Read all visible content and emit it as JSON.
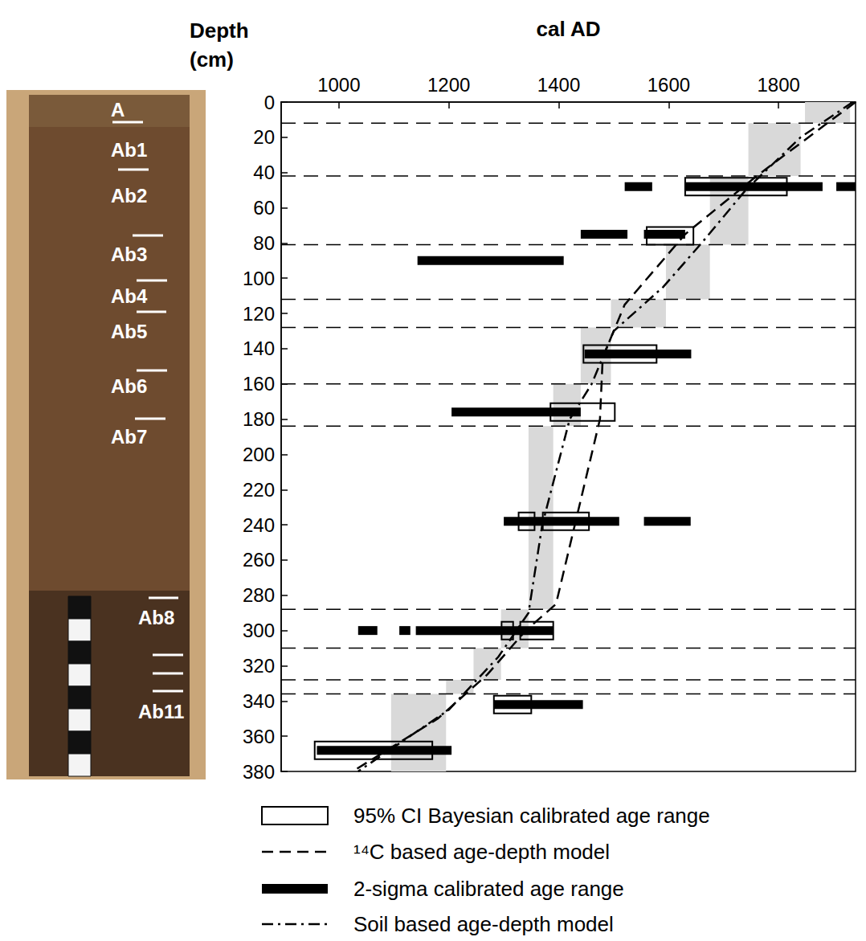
{
  "chart_data": {
    "type": "age_depth",
    "x_label": "cal AD",
    "y_label": "Depth (cm)",
    "xlim": [
      895,
      1940
    ],
    "xticks": [
      1000,
      1200,
      1400,
      1600,
      1800
    ],
    "ylim": [
      0,
      380
    ],
    "yticks": [
      0,
      20,
      40,
      60,
      80,
      100,
      120,
      140,
      160,
      180,
      200,
      220,
      240,
      260,
      280,
      300,
      320,
      340,
      360,
      380
    ],
    "grid": false,
    "legend": "bottom",
    "horizon_labels": [
      "A",
      "Ab1",
      "Ab2",
      "Ab3",
      "Ab4",
      "Ab5",
      "Ab6",
      "Ab7",
      "Ab8",
      "Ab11"
    ],
    "horizon_boundaries": [
      12,
      42,
      81,
      112,
      128,
      160,
      184,
      288,
      310,
      328,
      336
    ],
    "soil_age_ranges": {
      "color": "#d9d9d9",
      "ranges": [
        {
          "depth": [
            0,
            12
          ],
          "age": [
            1848,
            1930
          ]
        },
        {
          "depth": [
            12,
            42
          ],
          "age": [
            1745,
            1840
          ]
        },
        {
          "depth": [
            42,
            81
          ],
          "age": [
            1675,
            1745
          ]
        },
        {
          "depth": [
            81,
            112
          ],
          "age": [
            1595,
            1675
          ]
        },
        {
          "depth": [
            112,
            128
          ],
          "age": [
            1495,
            1595
          ]
        },
        {
          "depth": [
            128,
            160
          ],
          "age": [
            1440,
            1495
          ]
        },
        {
          "depth": [
            160,
            184
          ],
          "age": [
            1390,
            1440
          ]
        },
        {
          "depth": [
            184,
            288
          ],
          "age": [
            1345,
            1390
          ]
        },
        {
          "depth": [
            288,
            310
          ],
          "age": [
            1295,
            1345
          ]
        },
        {
          "depth": [
            310,
            328
          ],
          "age": [
            1245,
            1295
          ]
        },
        {
          "depth": [
            328,
            336
          ],
          "age": [
            1195,
            1245
          ]
        },
        {
          "depth": [
            336,
            380
          ],
          "age": [
            1095,
            1195
          ]
        }
      ]
    },
    "series": [
      {
        "name": "95% CI Bayesian calibrated age range",
        "type": "box",
        "color": "#000000",
        "values": [
          {
            "depth": 48,
            "ranges": [
              [
                1630,
                1815
              ]
            ]
          },
          {
            "depth": 76,
            "ranges": [
              [
                1560,
                1645
              ]
            ]
          },
          {
            "depth": 143,
            "ranges": [
              [
                1445,
                1578
              ]
            ]
          },
          {
            "depth": 176,
            "ranges": [
              [
                1385,
                1502
              ]
            ]
          },
          {
            "depth": 238,
            "ranges": [
              [
                1327,
                1356
              ],
              [
                1371,
                1455
              ]
            ]
          },
          {
            "depth": 300,
            "ranges": [
              [
                1296,
                1317
              ],
              [
                1330,
                1390
              ]
            ]
          },
          {
            "depth": 342,
            "ranges": [
              [
                1282,
                1350
              ]
            ]
          },
          {
            "depth": 368,
            "ranges": [
              [
                956,
                1170
              ]
            ]
          }
        ]
      },
      {
        "name": "¹⁴C based age-depth model",
        "type": "line",
        "line_style": "dashed",
        "color": "#000000",
        "x": [
          1940,
          1760,
          1630,
          1520,
          1480,
          1475,
          1395,
          1340,
          1270,
          1180,
          1025
        ],
        "values": [
          0,
          42,
          75,
          115,
          145,
          180,
          285,
          300,
          325,
          350,
          380
        ]
      },
      {
        "name": "2-sigma calibrated age range",
        "type": "bar",
        "color": "#000000",
        "values": [
          {
            "depth": 48,
            "ranges": [
              [
                1520,
                1570
              ],
              [
                1630,
                1880
              ],
              [
                1905,
                1940
              ]
            ]
          },
          {
            "depth": 75,
            "ranges": [
              [
                1440,
                1525
              ],
              [
                1555,
                1630
              ]
            ]
          },
          {
            "depth": 90,
            "ranges": [
              [
                1143,
                1409
              ]
            ]
          },
          {
            "depth": 143,
            "ranges": [
              [
                1447,
                1641
              ]
            ]
          },
          {
            "depth": 176,
            "ranges": [
              [
                1205,
                1440
              ]
            ]
          },
          {
            "depth": 238,
            "ranges": [
              [
                1300,
                1510
              ],
              [
                1555,
                1640
              ]
            ]
          },
          {
            "depth": 300,
            "ranges": [
              [
                1035,
                1070
              ],
              [
                1110,
                1130
              ],
              [
                1140,
                1390
              ]
            ]
          },
          {
            "depth": 342,
            "ranges": [
              [
                1282,
                1444
              ]
            ]
          },
          {
            "depth": 368,
            "ranges": [
              [
                960,
                1205
              ]
            ]
          }
        ]
      },
      {
        "name": "Soil based age-depth model",
        "type": "line",
        "line_style": "dashdot",
        "color": "#000000",
        "x": [
          1935,
          1840,
          1740,
          1660,
          1590,
          1500,
          1460,
          1420,
          1370,
          1345,
          1290,
          1200,
          1035
        ],
        "values": [
          0,
          20,
          50,
          80,
          105,
          130,
          160,
          180,
          240,
          290,
          315,
          345,
          380
        ]
      }
    ]
  }
}
